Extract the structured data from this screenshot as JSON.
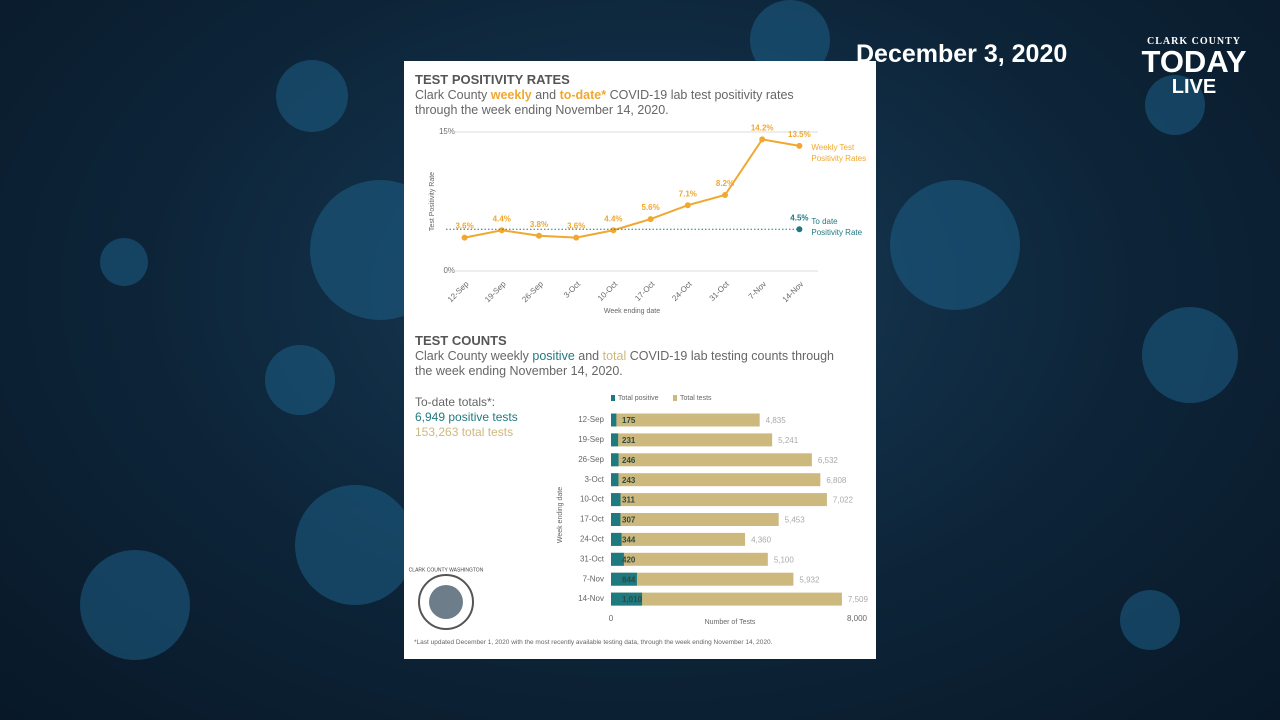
{
  "header": {
    "date": "December 3, 2020",
    "logo_top": "CLARK COUNTY",
    "logo_main": "TODAY",
    "logo_live": "LIVE"
  },
  "positivity_subtitle": [
    "Clark County ",
    "weekly",
    " and ",
    "to-date*",
    " COVID-19 lab test positivity rates through the week ending November 14, 2020."
  ],
  "counts_subtitle": [
    "Clark County weekly ",
    "positive",
    " and ",
    "total",
    " COVID-19 lab testing counts through the week ending November 14, 2020."
  ],
  "totals": {
    "heading": "To-date totals*:",
    "positive": "6,949 positive tests",
    "total": "153,263 total tests"
  },
  "seal_text": "CLARK COUNTY WASHINGTON",
  "footnote": "*Last updated December 1, 2020 with the most recently available testing data, through the week ending November 14, 2020.",
  "chart_data": [
    {
      "type": "line",
      "title": "TEST POSITIVITY RATES",
      "categories": [
        "12-Sep",
        "19-Sep",
        "26-Sep",
        "3-Oct",
        "10-Oct",
        "17-Oct",
        "24-Oct",
        "31-Oct",
        "7-Nov",
        "14-Nov"
      ],
      "series": [
        {
          "name": "Weekly Test Positivity Rates",
          "color": "#f0a830",
          "values": [
            3.6,
            4.4,
            3.8,
            3.6,
            4.4,
            5.6,
            7.1,
            8.2,
            14.2,
            13.5
          ],
          "value_labels": [
            "3.6%",
            "4.4%",
            "3.8%",
            "3.6%",
            "4.4%",
            "5.6%",
            "7.1%",
            "8.2%",
            "14.2%",
            "13.5%"
          ]
        },
        {
          "name": "To date Positivity Rate",
          "color": "#1f7a80",
          "values": [
            null,
            null,
            null,
            null,
            null,
            null,
            null,
            null,
            null,
            4.5
          ],
          "value_labels": [
            null,
            null,
            null,
            null,
            null,
            null,
            null,
            null,
            null,
            "4.5%"
          ]
        }
      ],
      "ylim": [
        0,
        15
      ],
      "yticks": [
        {
          "value": 0,
          "label": "0%"
        },
        {
          "value": 15,
          "label": "15%"
        }
      ],
      "ylabel": "Test Positivity Rate",
      "xlabel": "Week ending date",
      "grid": true
    },
    {
      "type": "bar",
      "title": "TEST COUNTS",
      "orientation": "horizontal",
      "mode": "overlay",
      "categories": [
        "12-Sep",
        "19-Sep",
        "26-Sep",
        "3-Oct",
        "10-Oct",
        "17-Oct",
        "24-Oct",
        "31-Oct",
        "7-Nov",
        "14-Nov"
      ],
      "series": [
        {
          "name": "Total positive",
          "color": "#1f7a80",
          "values": [
            175,
            231,
            246,
            243,
            311,
            307,
            344,
            420,
            844,
            1010
          ],
          "value_labels": [
            "175",
            "231",
            "246",
            "243",
            "311",
            "307",
            "344",
            "420",
            "844",
            "1,010"
          ]
        },
        {
          "name": "Total tests",
          "color": "#cdb87e",
          "values": [
            4835,
            5241,
            6532,
            6808,
            7022,
            5453,
            4360,
            5100,
            5932,
            7509
          ],
          "value_labels": [
            "4,835",
            "5,241",
            "6,532",
            "6,808",
            "7,022",
            "5,453",
            "4,360",
            "5,100",
            "5,932",
            "7,509"
          ]
        }
      ],
      "xlim": [
        0,
        8000
      ],
      "xticks": [
        0,
        {
          "value": 8000,
          "label": "8,000"
        }
      ],
      "xlabel": "Number of Tests",
      "ylabel": "Week ending date"
    }
  ]
}
